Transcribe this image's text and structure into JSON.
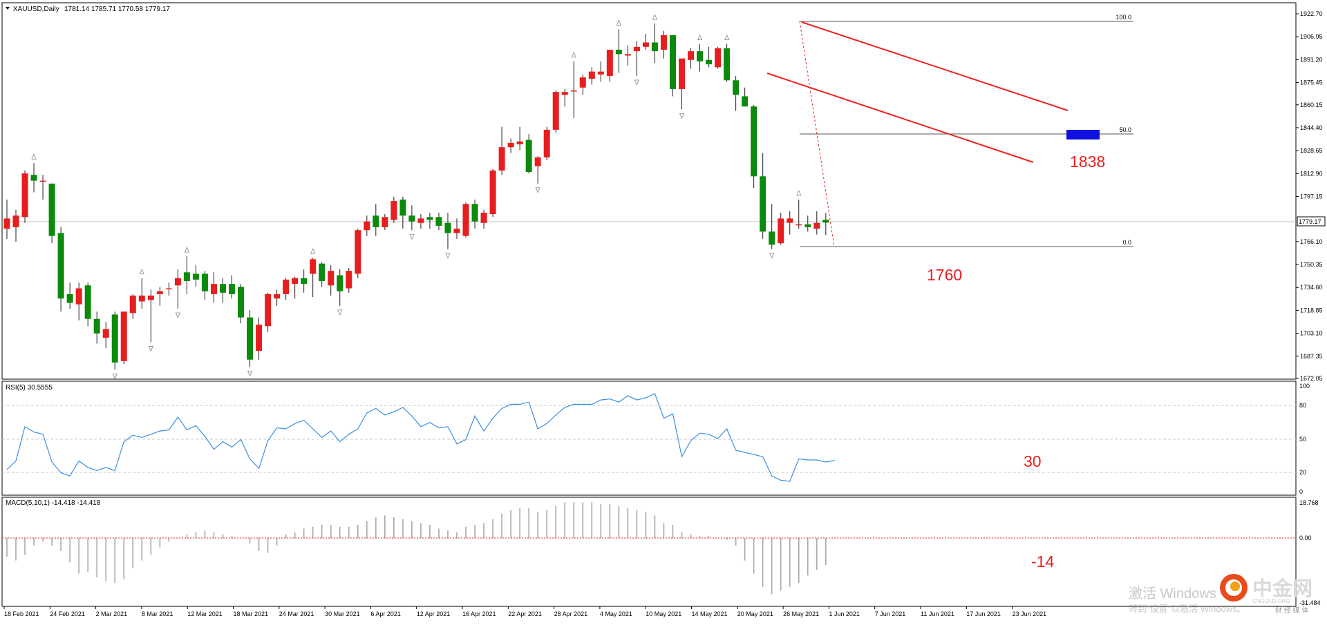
{
  "main_panel": {
    "legend": "XAUUSD,Daily",
    "ohlc": "1781.14 1785.71 1770.58 1779.17",
    "current_price": "1779.17",
    "price_ticks": [
      "1922.70",
      "1906.95",
      "1891.20",
      "1875.45",
      "1860.15",
      "1844.40",
      "1828.65",
      "1812.90",
      "1797.15",
      "1766.10",
      "1750.35",
      "1734.60",
      "1718.85",
      "1703.10",
      "1687.35",
      "1672.05"
    ],
    "fib_labels": [
      "100.0",
      "50.0",
      "0.0"
    ],
    "annotation_target": "1838",
    "annotation_low": "1760"
  },
  "rsi_panel": {
    "legend": "RSI(5) 30.5555",
    "ticks": [
      "100",
      "80",
      "50",
      "20",
      "0"
    ],
    "annotation": "30"
  },
  "macd_panel": {
    "legend": "MACD(5,10,1) -14.418 -14.418",
    "ticks": [
      "18.768",
      "0.00",
      "-31.484"
    ],
    "annotation": "-14"
  },
  "x_axis": {
    "labels": [
      "18 Feb 2021",
      "24 Feb 2021",
      "2 Mar 2021",
      "8 Mar 2021",
      "12 Mar 2021",
      "18 Mar 2021",
      "24 Mar 2021",
      "30 Mar 2021",
      "6 Apr 2021",
      "12 Apr 2021",
      "16 Apr 2021",
      "22 Apr 2021",
      "28 Apr 2021",
      "4 May 2021",
      "10 May 2021",
      "14 May 2021",
      "20 May 2021",
      "26 May 2021",
      "1 Jun 2021",
      "7 Jun 2021",
      "11 Jun 2021",
      "17 Jun 2021",
      "23 Jun 2021"
    ]
  },
  "watermark": {
    "activate_line1": "激活 Windows",
    "activate_line2": "转到\"设置\"以激活 Windows。",
    "brand": "中金网",
    "brand_url": "CNGOLD.ORG",
    "brand_sub": "财 经 媒 体"
  },
  "colors": {
    "bull": "#e81e1e",
    "bear": "#0b8a0b",
    "annotation": "#e81e1e",
    "rsi_line": "#3b8fe0",
    "channel": "#f02020",
    "target_box": "#1010e0"
  },
  "chart_data": [
    {
      "type": "candlestick",
      "symbol": "XAUUSD",
      "timeframe": "Daily",
      "ylim": [
        1672.05,
        1928.0
      ],
      "candles": [
        {
          "o": 1775,
          "h": 1795,
          "l": 1768,
          "c": 1782
        },
        {
          "o": 1776,
          "h": 1788,
          "l": 1766,
          "c": 1784
        },
        {
          "o": 1783,
          "h": 1815,
          "l": 1779,
          "c": 1813
        },
        {
          "o": 1812,
          "h": 1820,
          "l": 1800,
          "c": 1808
        },
        {
          "o": 1808,
          "h": 1812,
          "l": 1795,
          "c": 1808
        },
        {
          "o": 1806,
          "h": 1806,
          "l": 1765,
          "c": 1770
        },
        {
          "o": 1772,
          "h": 1776,
          "l": 1718,
          "c": 1727
        },
        {
          "o": 1730,
          "h": 1738,
          "l": 1720,
          "c": 1724
        },
        {
          "o": 1723,
          "h": 1738,
          "l": 1712,
          "c": 1734
        },
        {
          "o": 1736,
          "h": 1738,
          "l": 1708,
          "c": 1713
        },
        {
          "o": 1713,
          "h": 1718,
          "l": 1696,
          "c": 1703
        },
        {
          "o": 1700,
          "h": 1711,
          "l": 1693,
          "c": 1706
        },
        {
          "o": 1716,
          "h": 1718,
          "l": 1678,
          "c": 1683
        },
        {
          "o": 1684,
          "h": 1718,
          "l": 1682,
          "c": 1718
        },
        {
          "o": 1717,
          "h": 1730,
          "l": 1713,
          "c": 1729
        },
        {
          "o": 1725,
          "h": 1741,
          "l": 1720,
          "c": 1729
        },
        {
          "o": 1726,
          "h": 1733,
          "l": 1697,
          "c": 1729
        },
        {
          "o": 1730,
          "h": 1735,
          "l": 1722,
          "c": 1732
        },
        {
          "o": 1734,
          "h": 1738,
          "l": 1729,
          "c": 1734
        },
        {
          "o": 1736,
          "h": 1747,
          "l": 1720,
          "c": 1741
        },
        {
          "o": 1745,
          "h": 1756,
          "l": 1730,
          "c": 1739
        },
        {
          "o": 1744,
          "h": 1750,
          "l": 1735,
          "c": 1740
        },
        {
          "o": 1744,
          "h": 1746,
          "l": 1726,
          "c": 1732
        },
        {
          "o": 1730,
          "h": 1745,
          "l": 1724,
          "c": 1737
        },
        {
          "o": 1737,
          "h": 1741,
          "l": 1724,
          "c": 1731
        },
        {
          "o": 1737,
          "h": 1743,
          "l": 1727,
          "c": 1730
        },
        {
          "o": 1735,
          "h": 1737,
          "l": 1710,
          "c": 1714
        },
        {
          "o": 1714,
          "h": 1719,
          "l": 1680,
          "c": 1685
        },
        {
          "o": 1691,
          "h": 1714,
          "l": 1685,
          "c": 1709
        },
        {
          "o": 1708,
          "h": 1731,
          "l": 1704,
          "c": 1730
        },
        {
          "o": 1727,
          "h": 1733,
          "l": 1722,
          "c": 1730
        },
        {
          "o": 1730,
          "h": 1741,
          "l": 1726,
          "c": 1740
        },
        {
          "o": 1737,
          "h": 1742,
          "l": 1727,
          "c": 1741
        },
        {
          "o": 1741,
          "h": 1747,
          "l": 1731,
          "c": 1737
        },
        {
          "o": 1744,
          "h": 1755,
          "l": 1728,
          "c": 1754
        },
        {
          "o": 1751,
          "h": 1752,
          "l": 1735,
          "c": 1739
        },
        {
          "o": 1736,
          "h": 1750,
          "l": 1729,
          "c": 1746
        },
        {
          "o": 1743,
          "h": 1747,
          "l": 1722,
          "c": 1732
        },
        {
          "o": 1734,
          "h": 1748,
          "l": 1731,
          "c": 1746
        },
        {
          "o": 1744,
          "h": 1775,
          "l": 1741,
          "c": 1774
        },
        {
          "o": 1774,
          "h": 1784,
          "l": 1770,
          "c": 1780
        },
        {
          "o": 1784,
          "h": 1792,
          "l": 1770,
          "c": 1776
        },
        {
          "o": 1776,
          "h": 1785,
          "l": 1774,
          "c": 1783
        },
        {
          "o": 1781,
          "h": 1797,
          "l": 1779,
          "c": 1794
        },
        {
          "o": 1795,
          "h": 1797,
          "l": 1775,
          "c": 1784
        },
        {
          "o": 1784,
          "h": 1791,
          "l": 1774,
          "c": 1780
        },
        {
          "o": 1779,
          "h": 1785,
          "l": 1775,
          "c": 1782
        },
        {
          "o": 1783,
          "h": 1786,
          "l": 1775,
          "c": 1781
        },
        {
          "o": 1783,
          "h": 1786,
          "l": 1774,
          "c": 1777
        },
        {
          "o": 1779,
          "h": 1786,
          "l": 1761,
          "c": 1772
        },
        {
          "o": 1772,
          "h": 1782,
          "l": 1768,
          "c": 1775
        },
        {
          "o": 1770,
          "h": 1793,
          "l": 1769,
          "c": 1792
        },
        {
          "o": 1792,
          "h": 1795,
          "l": 1775,
          "c": 1780
        },
        {
          "o": 1779,
          "h": 1788,
          "l": 1775,
          "c": 1786
        },
        {
          "o": 1785,
          "h": 1816,
          "l": 1783,
          "c": 1815
        },
        {
          "o": 1815,
          "h": 1845,
          "l": 1812,
          "c": 1831
        },
        {
          "o": 1831,
          "h": 1837,
          "l": 1827,
          "c": 1834
        },
        {
          "o": 1833,
          "h": 1845,
          "l": 1829,
          "c": 1835
        },
        {
          "o": 1836,
          "h": 1840,
          "l": 1813,
          "c": 1814
        },
        {
          "o": 1818,
          "h": 1825,
          "l": 1806,
          "c": 1824
        },
        {
          "o": 1824,
          "h": 1845,
          "l": 1822,
          "c": 1843
        },
        {
          "o": 1843,
          "h": 1870,
          "l": 1841,
          "c": 1869
        },
        {
          "o": 1867,
          "h": 1871,
          "l": 1859,
          "c": 1869
        },
        {
          "o": 1870,
          "h": 1890,
          "l": 1851,
          "c": 1870
        },
        {
          "o": 1872,
          "h": 1881,
          "l": 1867,
          "c": 1879
        },
        {
          "o": 1878,
          "h": 1886,
          "l": 1874,
          "c": 1883
        },
        {
          "o": 1881,
          "h": 1890,
          "l": 1876,
          "c": 1883
        },
        {
          "o": 1880,
          "h": 1898,
          "l": 1876,
          "c": 1898
        },
        {
          "o": 1898,
          "h": 1912,
          "l": 1882,
          "c": 1895
        },
        {
          "o": 1894,
          "h": 1901,
          "l": 1887,
          "c": 1895
        },
        {
          "o": 1897,
          "h": 1904,
          "l": 1880,
          "c": 1900
        },
        {
          "o": 1900,
          "h": 1909,
          "l": 1898,
          "c": 1903
        },
        {
          "o": 1903,
          "h": 1916,
          "l": 1889,
          "c": 1897
        },
        {
          "o": 1898,
          "h": 1911,
          "l": 1892,
          "c": 1908
        },
        {
          "o": 1908,
          "h": 1908,
          "l": 1866,
          "c": 1871
        },
        {
          "o": 1871,
          "h": 1891,
          "l": 1857,
          "c": 1892
        },
        {
          "o": 1891,
          "h": 1899,
          "l": 1885,
          "c": 1897
        },
        {
          "o": 1897,
          "h": 1902,
          "l": 1883,
          "c": 1890
        },
        {
          "o": 1891,
          "h": 1900,
          "l": 1886,
          "c": 1888
        },
        {
          "o": 1886,
          "h": 1900,
          "l": 1885,
          "c": 1899
        },
        {
          "o": 1899,
          "h": 1902,
          "l": 1876,
          "c": 1877
        },
        {
          "o": 1877,
          "h": 1880,
          "l": 1856,
          "c": 1867
        },
        {
          "o": 1866,
          "h": 1872,
          "l": 1859,
          "c": 1859
        },
        {
          "o": 1859,
          "h": 1860,
          "l": 1803,
          "c": 1811
        },
        {
          "o": 1811,
          "h": 1827,
          "l": 1768,
          "c": 1773
        },
        {
          "o": 1773,
          "h": 1792,
          "l": 1761,
          "c": 1764
        },
        {
          "o": 1765,
          "h": 1786,
          "l": 1764,
          "c": 1782
        },
        {
          "o": 1779,
          "h": 1787,
          "l": 1771,
          "c": 1782
        },
        {
          "o": 1778,
          "h": 1795,
          "l": 1775,
          "c": 1778
        },
        {
          "o": 1778,
          "h": 1784,
          "l": 1773,
          "c": 1776
        },
        {
          "o": 1775,
          "h": 1787,
          "l": 1771,
          "c": 1779
        },
        {
          "o": 1781.14,
          "h": 1785.71,
          "l": 1770.58,
          "c": 1779.17
        }
      ]
    },
    {
      "type": "line",
      "name": "RSI(5)",
      "ylim": [
        0,
        100
      ],
      "levels": [
        20,
        50,
        80
      ],
      "values": [
        22,
        30,
        62,
        57,
        55,
        29,
        19,
        16,
        30,
        24,
        21,
        24,
        21,
        48,
        54,
        52,
        55,
        58,
        59,
        71,
        59,
        63,
        53,
        41,
        48,
        43,
        50,
        32,
        23,
        49,
        61,
        60,
        65,
        68,
        60,
        52,
        58,
        48,
        55,
        60,
        75,
        79,
        73,
        76,
        80,
        72,
        62,
        66,
        61,
        62,
        46,
        50,
        72,
        58,
        70,
        79,
        83,
        83,
        85,
        60,
        65,
        73,
        80,
        83,
        83,
        83,
        87,
        88,
        85,
        91,
        87,
        89,
        93,
        70,
        74,
        34,
        49,
        56,
        55,
        51,
        60,
        40,
        38,
        36,
        34,
        16,
        12,
        11,
        32,
        31,
        31,
        29,
        30.5555
      ]
    },
    {
      "type": "bar",
      "name": "MACD(5,10,1)",
      "ylim": [
        -31.484,
        18.768
      ],
      "values": [
        -10,
        -12,
        -9,
        -4,
        -2,
        -4,
        -7,
        -13,
        -19,
        -18,
        -21,
        -23,
        -24,
        -22,
        -16,
        -12,
        -9,
        -5,
        -2,
        0,
        2,
        3,
        4,
        3,
        2,
        1,
        0,
        -3,
        -7,
        -8,
        -4,
        2,
        3,
        5,
        6,
        7,
        7,
        6,
        6,
        7,
        9,
        11,
        12,
        11,
        10,
        9,
        8,
        7,
        5,
        4,
        3,
        6,
        7,
        8,
        10,
        13,
        15,
        16,
        16,
        14,
        15,
        17,
        19,
        19,
        19,
        19,
        18,
        18,
        17,
        16,
        15,
        14,
        12,
        8,
        7,
        3,
        2,
        1,
        1,
        0,
        -1,
        -4,
        -12,
        -19,
        -26,
        -30,
        -28,
        -26,
        -24,
        -20,
        -17,
        -14.418
      ]
    }
  ]
}
